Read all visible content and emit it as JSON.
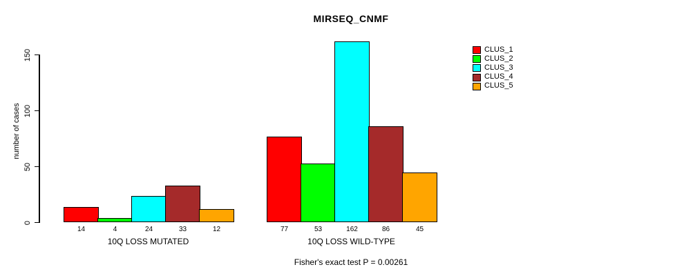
{
  "caption": "Fisher's exact test P = 0.00261",
  "chart_data": {
    "type": "bar",
    "title": "MIRSEQ_CNMF",
    "xlabel": "",
    "ylabel": "number of cases",
    "ylim": [
      0,
      162
    ],
    "yticks": [
      0,
      50,
      100,
      150
    ],
    "grid": false,
    "legend_position": "top-right",
    "bar_value_labels": true,
    "categories": [
      "10Q LOSS MUTATED",
      "10Q LOSS WILD-TYPE"
    ],
    "series": [
      {
        "name": "CLUS_1",
        "color": "#FF0000",
        "values": [
          14,
          77
        ]
      },
      {
        "name": "CLUS_2",
        "color": "#00FF00",
        "values": [
          4,
          53
        ]
      },
      {
        "name": "CLUS_3",
        "color": "#00FFFF",
        "values": [
          24,
          162
        ]
      },
      {
        "name": "CLUS_4",
        "color": "#A52A2A",
        "values": [
          33,
          86
        ]
      },
      {
        "name": "CLUS_5",
        "color": "#FFA500",
        "values": [
          12,
          45
        ]
      }
    ],
    "colors": {
      "axis": "#000000",
      "text": "#000000",
      "background": "#FFFFFF"
    }
  }
}
